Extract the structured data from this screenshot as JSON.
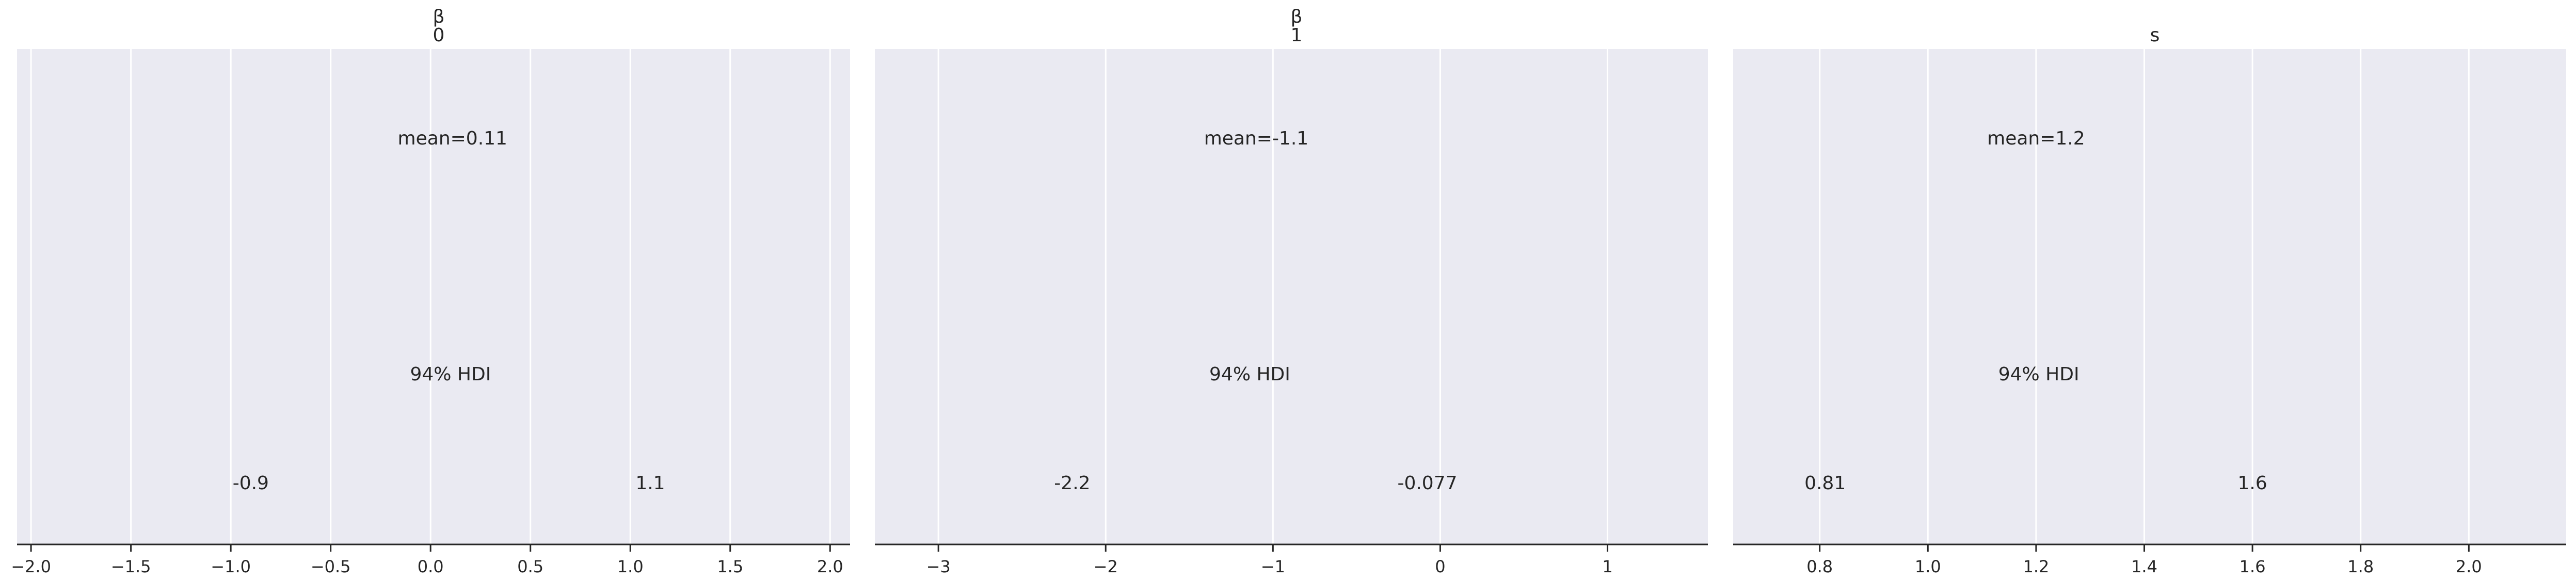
{
  "chart_data": [
    {
      "type": "posterior",
      "title_lines": [
        "β",
        "0"
      ],
      "mean_label": "mean=0.11",
      "mean": 0.11,
      "hdi_label": "94% HDI",
      "hdi": [
        -0.9,
        1.1
      ],
      "hdi_labels": [
        "-0.9",
        "1.1"
      ],
      "xlim": [
        -2.07,
        2.1
      ],
      "ticks": [
        -2.0,
        -1.5,
        -1.0,
        -0.5,
        0.0,
        0.5,
        1.0,
        1.5,
        2.0
      ],
      "tick_labels": [
        "−2.0",
        "−1.5",
        "−1.0",
        "−0.5",
        "0.0",
        "0.5",
        "1.0",
        "1.5",
        "2.0"
      ],
      "grid": true
    },
    {
      "type": "posterior",
      "title_lines": [
        "β",
        "1"
      ],
      "mean_label": "mean=-1.1",
      "mean": -1.1,
      "hdi_label": "94% HDI",
      "hdi": [
        -2.2,
        -0.077
      ],
      "hdi_labels": [
        "-2.2",
        "-0.077"
      ],
      "xlim": [
        -3.38,
        1.6
      ],
      "ticks": [
        -3,
        -2,
        -1,
        0,
        1
      ],
      "tick_labels": [
        "−3",
        "−2",
        "−1",
        "0",
        "1"
      ],
      "grid": true
    },
    {
      "type": "posterior",
      "title_lines": [
        "",
        "s"
      ],
      "mean_label": "mean=1.2",
      "mean": 1.2,
      "hdi_label": "94% HDI",
      "hdi": [
        0.81,
        1.6
      ],
      "hdi_labels": [
        "0.81",
        "1.6"
      ],
      "xlim": [
        0.64,
        2.18
      ],
      "ticks": [
        0.8,
        1.0,
        1.2,
        1.4,
        1.6,
        1.8,
        2.0
      ],
      "tick_labels": [
        "0.8",
        "1.0",
        "1.2",
        "1.4",
        "1.6",
        "1.8",
        "2.0"
      ],
      "grid": true
    }
  ],
  "colors": {
    "axes_bg": "#eaeaf2",
    "grid": "#ffffff",
    "spine": "#262626",
    "text": "#262626"
  }
}
